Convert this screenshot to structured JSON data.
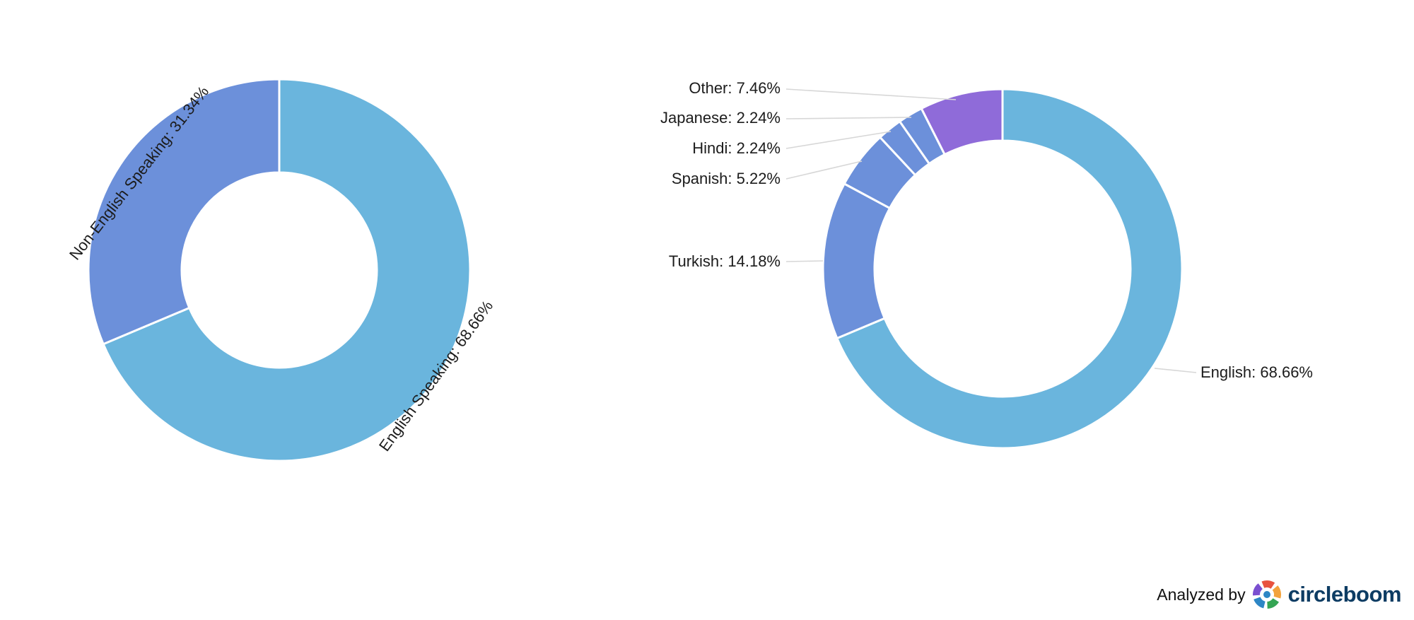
{
  "chart_data": [
    {
      "type": "pie",
      "variant": "donut",
      "name": "english-vs-non-english-speaking",
      "title": "",
      "unit": "%",
      "start_angle": 0,
      "direction": "clockwise",
      "slices": [
        {
          "label": "English Speaking",
          "value": 68.66,
          "display": "English Speaking: 68.66%",
          "color": "#6ab5dd"
        },
        {
          "label": "Non-English Speaking",
          "value": 31.34,
          "display": "Non-English Speaking: 31.34%",
          "color": "#6c90da"
        }
      ]
    },
    {
      "type": "pie",
      "variant": "donut",
      "name": "languages-breakdown",
      "title": "",
      "unit": "%",
      "start_angle": 0,
      "direction": "clockwise",
      "slices": [
        {
          "label": "English",
          "value": 68.66,
          "display": "English: 68.66%",
          "color": "#6ab5dd"
        },
        {
          "label": "Turkish",
          "value": 14.18,
          "display": "Turkish: 14.18%",
          "color": "#6c90da"
        },
        {
          "label": "Spanish",
          "value": 5.22,
          "display": "Spanish: 5.22%",
          "color": "#6c90da"
        },
        {
          "label": "Hindi",
          "value": 2.24,
          "display": "Hindi: 2.24%",
          "color": "#6c90da"
        },
        {
          "label": "Japanese",
          "value": 2.24,
          "display": "Japanese: 2.24%",
          "color": "#6c90da"
        },
        {
          "label": "Other",
          "value": 7.46,
          "display": "Other: 7.46%",
          "color": "#8f6bd9"
        }
      ]
    }
  ],
  "footer": {
    "analyzed_by_label": "Analyzed by",
    "brand_name": "circleboom",
    "brand_color": "#0d3c63",
    "logo_colors": [
      "#e8533f",
      "#f2a33c",
      "#35a554",
      "#2d86c5",
      "#7a4fd0"
    ],
    "logo_dot_color": "#2d86c5"
  }
}
